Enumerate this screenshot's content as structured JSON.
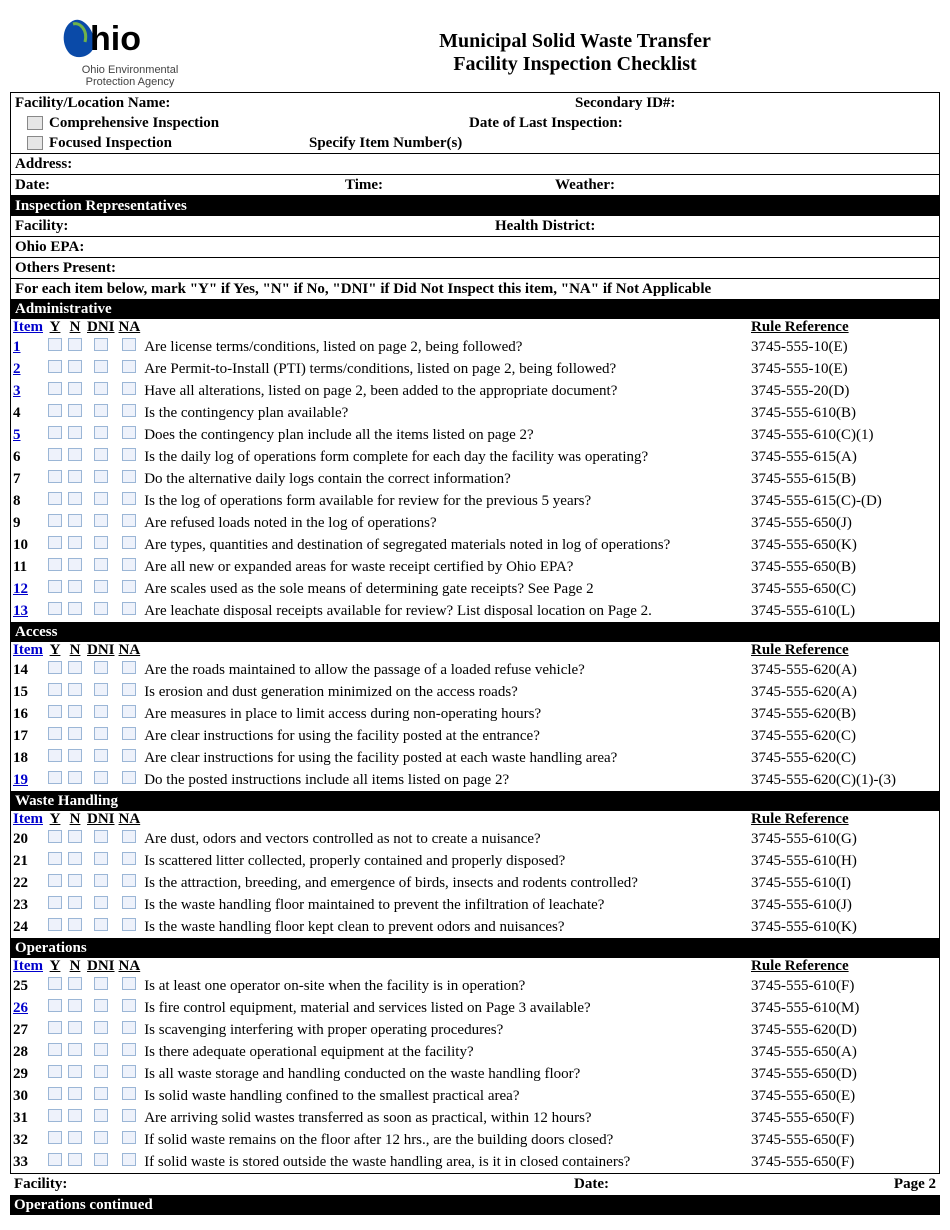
{
  "logo_text": "hio",
  "logo_caption_lines": [
    "Ohio Environmental",
    "Protection Agency"
  ],
  "title_lines": [
    "Municipal Solid Waste Transfer",
    "Facility Inspection Checklist"
  ],
  "colors": {
    "section_bar_bg": "#000000",
    "section_bar_fg": "#ffffff",
    "link": "#0000cc",
    "checkbox_border": "#9bb6d6",
    "checkbox_fill": "#eef2fb"
  },
  "header_fields": {
    "facility_location_name": "Facility/Location Name:",
    "secondary_id": "Secondary ID#:",
    "comprehensive": "Comprehensive Inspection",
    "date_last_inspection": "Date of Last Inspection:",
    "focused": "Focused Inspection",
    "specify_item_numbers": "Specify Item Number(s)",
    "address": "Address:",
    "date": "Date:",
    "time": "Time:",
    "weather": "Weather:",
    "inspection_reps": "Inspection Representatives",
    "facility": "Facility:",
    "health_district": "Health District:",
    "ohio_epa": "Ohio EPA:",
    "others_present": "Others Present:",
    "instructions": "For each item below, mark \"Y\" if Yes, \"N\" if No, \"DNI\" if Did Not Inspect this item, \"NA\" if Not Applicable"
  },
  "column_headers": {
    "item": "Item",
    "y": "Y",
    "n": "N",
    "dni": "DNI",
    "na": "NA",
    "rule_ref": "Rule Reference"
  },
  "sections": [
    {
      "title": "Administrative",
      "items": [
        {
          "num": "1",
          "link": true,
          "q": "Are license terms/conditions, listed on page 2, being followed?",
          "rule": "3745-555-10(E)"
        },
        {
          "num": "2",
          "link": true,
          "q": "Are Permit-to-Install (PTI) terms/conditions, listed on page 2, being followed?",
          "rule": "3745-555-10(E)"
        },
        {
          "num": "3",
          "link": true,
          "q": "Have all alterations, listed on page 2, been added to the appropriate document?",
          "rule": "3745-555-20(D)"
        },
        {
          "num": "4",
          "link": false,
          "q": "Is the contingency plan available?",
          "rule": "3745-555-610(B)"
        },
        {
          "num": "5",
          "link": true,
          "q": "Does the contingency plan include all the items listed on page 2?",
          "rule": "3745-555-610(C)(1)"
        },
        {
          "num": "6",
          "link": false,
          "q": "Is the daily log of operations form complete for each day the facility was operating?",
          "rule": "3745-555-615(A)"
        },
        {
          "num": "7",
          "link": false,
          "q": "Do the alternative daily logs contain the correct information?",
          "rule": "3745-555-615(B)"
        },
        {
          "num": "8",
          "link": false,
          "q": "Is the log of operations form available for review for the previous 5 years?",
          "rule": "3745-555-615(C)-(D)"
        },
        {
          "num": "9",
          "link": false,
          "q": "Are refused loads noted in the log of operations?",
          "rule": "3745-555-650(J)"
        },
        {
          "num": "10",
          "link": false,
          "q": "Are types, quantities and destination of segregated materials noted in log of operations?",
          "rule": "3745-555-650(K)"
        },
        {
          "num": "11",
          "link": false,
          "q": "Are all new or expanded areas for waste receipt certified by Ohio EPA?",
          "rule": "3745-555-650(B)"
        },
        {
          "num": "12",
          "link": true,
          "q": "Are scales used as the sole means of determining gate receipts? See Page 2",
          "rule": "3745-555-650(C)"
        },
        {
          "num": "13",
          "link": true,
          "q": "Are leachate disposal receipts available for review? List disposal location on Page 2.",
          "rule": "3745-555-610(L)"
        }
      ]
    },
    {
      "title": "Access",
      "items": [
        {
          "num": "14",
          "link": false,
          "q": "Are the roads maintained to allow the passage of a loaded refuse vehicle?",
          "rule": "3745-555-620(A)"
        },
        {
          "num": "15",
          "link": false,
          "q": "Is erosion and dust generation minimized on the access roads?",
          "rule": "3745-555-620(A)"
        },
        {
          "num": "16",
          "link": false,
          "q": "Are measures in place to limit access during non-operating hours?",
          "rule": "3745-555-620(B)"
        },
        {
          "num": "17",
          "link": false,
          "q": "Are clear instructions for using the facility posted at the entrance?",
          "rule": "3745-555-620(C)"
        },
        {
          "num": "18",
          "link": false,
          "q": "Are clear instructions for using the facility posted at each waste handling area?",
          "rule": "3745-555-620(C)"
        },
        {
          "num": "19",
          "link": true,
          "q": "Do the posted instructions include all items listed on page 2?",
          "rule": "3745-555-620(C)(1)-(3)"
        }
      ]
    },
    {
      "title": "Waste Handling",
      "items": [
        {
          "num": "20",
          "link": false,
          "q": "Are dust, odors and vectors controlled as not to create a nuisance?",
          "rule": "3745-555-610(G)"
        },
        {
          "num": "21",
          "link": false,
          "q": "Is scattered litter collected,  properly contained and properly disposed?",
          "rule": "3745-555-610(H)"
        },
        {
          "num": "22",
          "link": false,
          "q": "Is the attraction, breeding, and emergence of birds, insects and rodents controlled?",
          "rule": "3745-555-610(I)"
        },
        {
          "num": "23",
          "link": false,
          "q": "Is the waste handling floor maintained to prevent the infiltration of leachate?",
          "rule": "3745-555-610(J)"
        },
        {
          "num": "24",
          "link": false,
          "q": "Is the waste handling floor kept clean to prevent odors and nuisances?",
          "rule": "3745-555-610(K)"
        }
      ]
    },
    {
      "title": "Operations",
      "items": [
        {
          "num": "25",
          "link": false,
          "q": "Is at least one operator on-site when the facility is in operation?",
          "rule": "3745-555-610(F)"
        },
        {
          "num": "26",
          "link": true,
          "q": "Is fire control equipment, material and services listed on Page 3 available?",
          "rule": "3745-555-610(M)"
        },
        {
          "num": "27",
          "link": false,
          "q": "Is scavenging interfering with proper operating procedures?",
          "rule": "3745-555-620(D)"
        },
        {
          "num": "28",
          "link": false,
          "q": "Is there adequate operational equipment at the facility?",
          "rule": "3745-555-650(A)"
        },
        {
          "num": "29",
          "link": false,
          "q": "Is all waste storage and handling conducted on the waste handling floor?",
          "rule": "3745-555-650(D)"
        },
        {
          "num": "30",
          "link": false,
          "q": "Is solid waste handling confined to the smallest practical area?",
          "rule": "3745-555-650(E)"
        },
        {
          "num": "31",
          "link": false,
          "q": "Are arriving solid wastes transferred as soon as practical, within 12 hours?",
          "rule": "3745-555-650(F)"
        },
        {
          "num": "32",
          "link": false,
          "q": "If solid waste remains on the floor after 12 hrs., are the building doors closed?",
          "rule": "3745-555-650(F)"
        },
        {
          "num": "33",
          "link": false,
          "q": "If solid waste is stored outside the waste handling area, is it in closed containers?",
          "rule": "3745-555-650(F)"
        }
      ]
    }
  ],
  "footer": {
    "facility": "Facility:",
    "date": "Date:",
    "page": "Page 2",
    "continued": "Operations continued"
  }
}
